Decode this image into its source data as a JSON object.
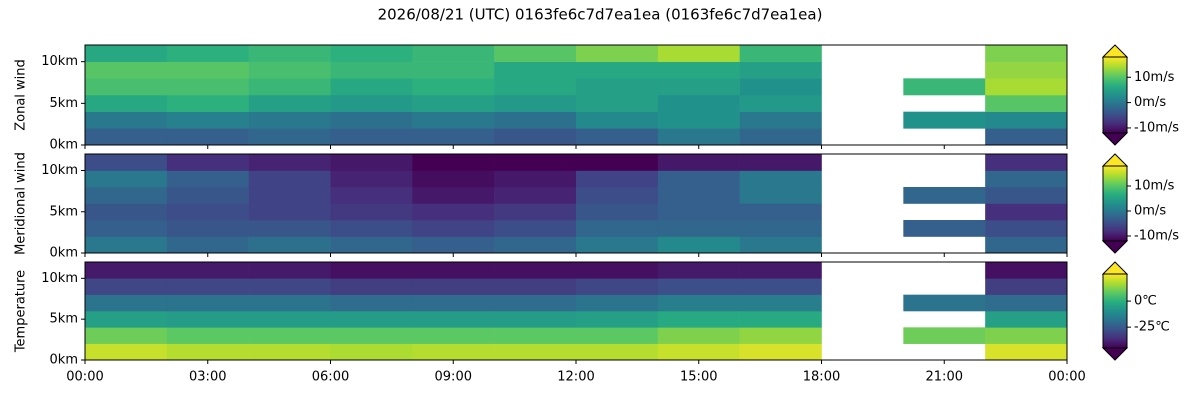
{
  "chart_data": [
    {
      "type": "heatmap",
      "title": "2026/08/21 (UTC) 0163fe6c7d7ea1ea (0163fe6c7d7ea1ea)",
      "ylabel": "Zonal wind",
      "colormap": "viridis",
      "xbins": [
        0,
        2,
        4,
        6,
        8,
        10,
        12,
        14,
        16,
        18,
        20,
        22,
        24
      ],
      "ybins": [
        0,
        2,
        4,
        6,
        8,
        10,
        12
      ],
      "values": [
        [
          -3,
          -3,
          -2,
          -3,
          -3,
          -4,
          -3,
          0,
          -2,
          null,
          null,
          -3
        ],
        [
          0,
          1,
          0,
          -1,
          0,
          -1,
          2,
          3,
          0,
          null,
          3,
          2
        ],
        [
          6,
          7,
          5,
          4,
          5,
          4,
          5,
          3,
          4,
          null,
          null,
          10
        ],
        [
          9,
          9,
          8,
          6,
          7,
          6,
          5,
          5,
          3,
          null,
          8,
          14
        ],
        [
          10,
          10,
          9,
          8,
          8,
          6,
          6,
          6,
          5,
          null,
          null,
          13
        ],
        [
          6,
          7,
          8,
          7,
          8,
          10,
          12,
          14,
          8,
          null,
          null,
          12
        ]
      ],
      "xlim": [
        0,
        24
      ],
      "ylim": [
        0,
        12
      ],
      "yticks": [
        {
          "value": 0,
          "label": "0km"
        },
        {
          "value": 5,
          "label": "5km"
        },
        {
          "value": 10,
          "label": "10km"
        }
      ],
      "clim": [
        -12,
        18
      ],
      "cticks": [
        {
          "value": -10,
          "label": "-10m/s"
        },
        {
          "value": 0,
          "label": "0m/s"
        },
        {
          "value": 10,
          "label": "10m/s"
        }
      ]
    },
    {
      "type": "heatmap",
      "ylabel": "Meridional wind",
      "colormap": "viridis",
      "xbins": [
        0,
        2,
        4,
        6,
        8,
        10,
        12,
        14,
        16,
        18,
        20,
        22,
        24
      ],
      "ybins": [
        0,
        2,
        4,
        6,
        8,
        10,
        12
      ],
      "values": [
        [
          0,
          -2,
          -1,
          -2,
          -3,
          -2,
          0,
          2,
          0,
          null,
          null,
          -2
        ],
        [
          -3,
          -4,
          -4,
          -5,
          -6,
          -5,
          -2,
          -2,
          -2,
          null,
          -3,
          -5
        ],
        [
          -4,
          -5,
          -6,
          -7,
          -8,
          -7,
          -4,
          -3,
          -3,
          null,
          null,
          -8
        ],
        [
          -2,
          -4,
          -6,
          -8,
          -10,
          -9,
          -5,
          -3,
          0,
          null,
          -2,
          -4
        ],
        [
          0,
          -3,
          -6,
          -9,
          -11,
          -10,
          -6,
          -3,
          0,
          null,
          null,
          -2
        ],
        [
          -5,
          -8,
          -9,
          -10,
          -12,
          -12,
          -12,
          -10,
          -10,
          null,
          null,
          -8
        ]
      ],
      "xlim": [
        0,
        24
      ],
      "ylim": [
        0,
        12
      ],
      "yticks": [
        {
          "value": 0,
          "label": "0km"
        },
        {
          "value": 5,
          "label": "5km"
        },
        {
          "value": 10,
          "label": "10km"
        }
      ],
      "clim": [
        -12,
        18
      ],
      "cticks": [
        {
          "value": -10,
          "label": "-10m/s"
        },
        {
          "value": 0,
          "label": "0m/s"
        },
        {
          "value": 10,
          "label": "10m/s"
        }
      ]
    },
    {
      "type": "heatmap",
      "ylabel": "Temperature",
      "colormap": "viridis",
      "xbins": [
        0,
        2,
        4,
        6,
        8,
        10,
        12,
        14,
        16,
        18,
        20,
        22,
        24
      ],
      "ybins": [
        0,
        2,
        4,
        6,
        8,
        10,
        12
      ],
      "values": [
        [
          20,
          18,
          18,
          17,
          18,
          18,
          18,
          20,
          22,
          null,
          null,
          22
        ],
        [
          10,
          8,
          8,
          8,
          8,
          8,
          8,
          12,
          14,
          null,
          10,
          12
        ],
        [
          -5,
          -6,
          -6,
          -6,
          -6,
          -6,
          -5,
          -2,
          -2,
          null,
          null,
          -5
        ],
        [
          -18,
          -18,
          -18,
          -20,
          -20,
          -20,
          -18,
          -15,
          -15,
          null,
          -18,
          -20
        ],
        [
          -30,
          -30,
          -30,
          -32,
          -32,
          -32,
          -30,
          -28,
          -28,
          null,
          null,
          -32
        ],
        [
          -40,
          -40,
          -40,
          -42,
          -42,
          -42,
          -42,
          -40,
          -40,
          null,
          null,
          -42
        ]
      ],
      "xlim": [
        0,
        24
      ],
      "ylim": [
        0,
        12
      ],
      "yticks": [
        {
          "value": 0,
          "label": "0km"
        },
        {
          "value": 5,
          "label": "5km"
        },
        {
          "value": 10,
          "label": "10km"
        }
      ],
      "xticks": [
        {
          "value": 0,
          "label": "00:00"
        },
        {
          "value": 3,
          "label": "03:00"
        },
        {
          "value": 6,
          "label": "06:00"
        },
        {
          "value": 9,
          "label": "09:00"
        },
        {
          "value": 12,
          "label": "12:00"
        },
        {
          "value": 15,
          "label": "15:00"
        },
        {
          "value": 18,
          "label": "18:00"
        },
        {
          "value": 21,
          "label": "21:00"
        },
        {
          "value": 24,
          "label": "00:00"
        }
      ],
      "clim": [
        -45,
        26
      ],
      "cticks": [
        {
          "value": -25,
          "label": "-25℃"
        },
        {
          "value": 0,
          "label": "0℃"
        }
      ]
    }
  ]
}
